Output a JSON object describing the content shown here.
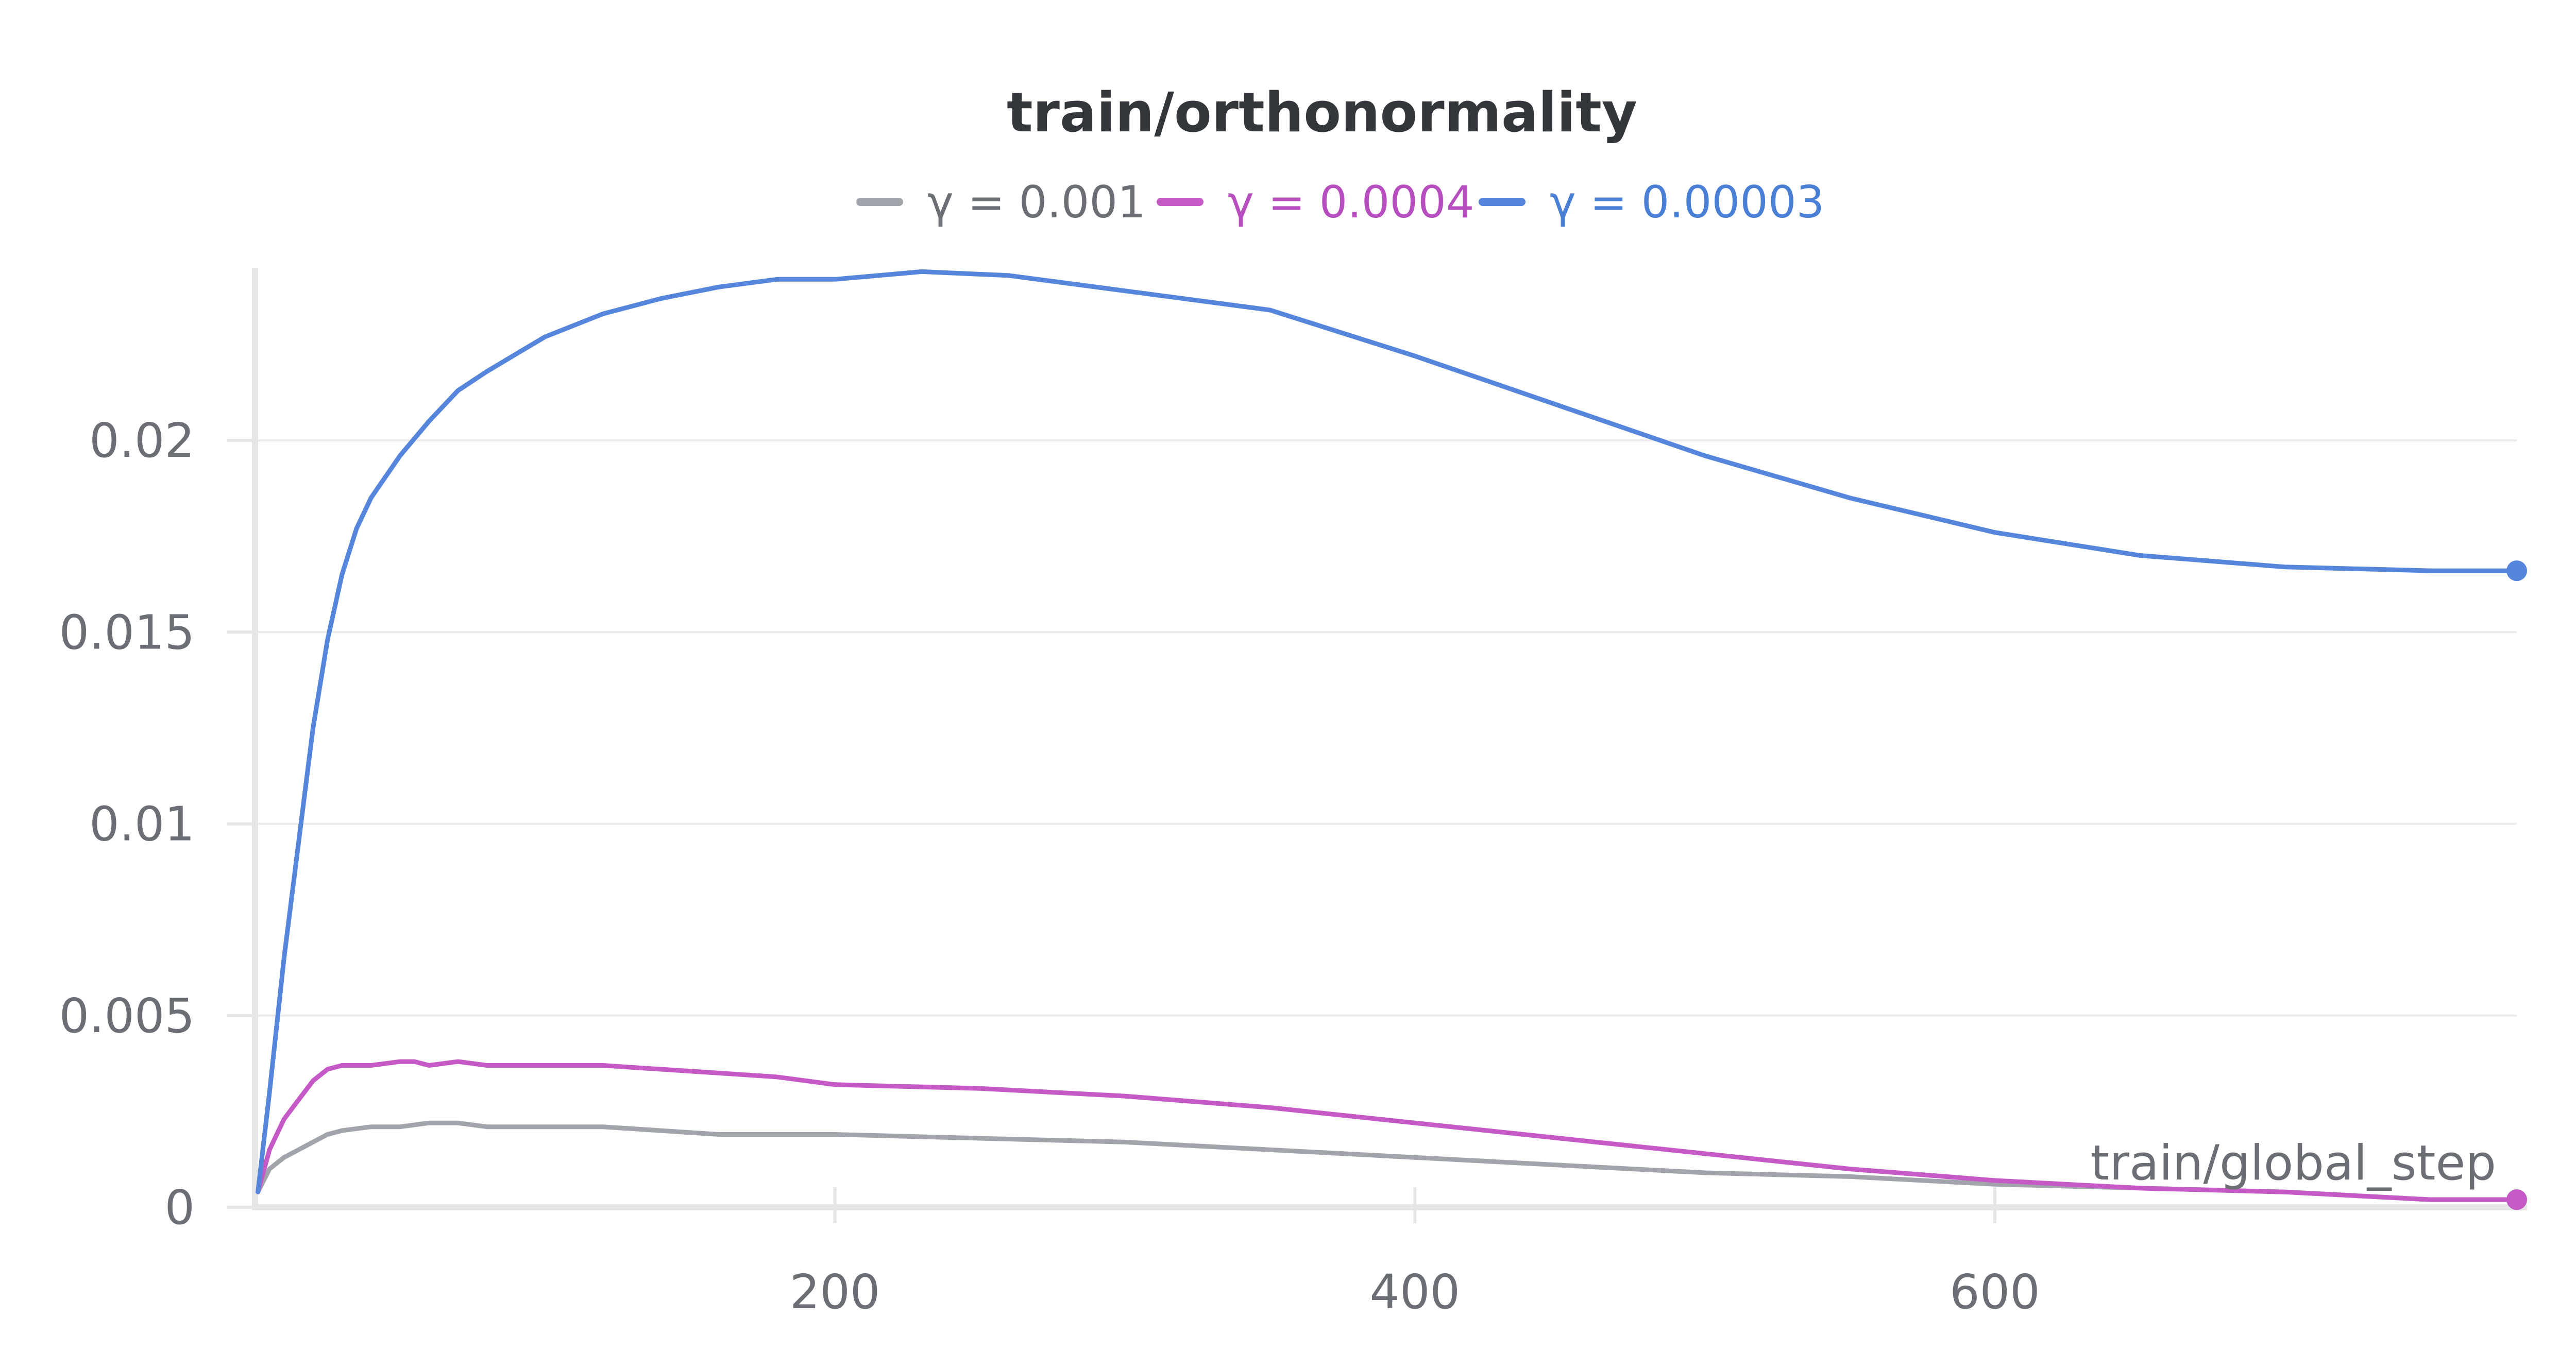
{
  "chart_data": {
    "type": "line",
    "title": "train/orthonormality",
    "xlabel": "train/global_step",
    "ylabel": "",
    "xlim": [
      0,
      780
    ],
    "ylim": [
      0,
      0.0245
    ],
    "x_ticks": [
      200,
      400,
      600
    ],
    "x_tick_labels": [
      "200",
      "400",
      "600"
    ],
    "y_ticks": [
      0,
      0.005,
      0.01,
      0.015,
      0.02
    ],
    "y_tick_labels": [
      "0",
      "0.005",
      "0.01",
      "0.015",
      "0.02"
    ],
    "grid": true,
    "legend_position": "top-center",
    "series": [
      {
        "name": "γ = 0.001",
        "color": "#a1a5ab",
        "x": [
          1,
          5,
          10,
          15,
          20,
          25,
          30,
          40,
          50,
          60,
          70,
          80,
          100,
          120,
          140,
          160,
          180,
          200,
          250,
          300,
          350,
          400,
          450,
          500,
          550,
          600,
          650,
          700,
          750,
          780
        ],
        "y": [
          0.0004,
          0.001,
          0.0013,
          0.0015,
          0.0017,
          0.0019,
          0.002,
          0.0021,
          0.0021,
          0.0022,
          0.0022,
          0.0021,
          0.0021,
          0.0021,
          0.002,
          0.0019,
          0.0019,
          0.0019,
          0.0018,
          0.0017,
          0.0015,
          0.0013,
          0.0011,
          0.0009,
          0.0008,
          0.0006,
          0.0005,
          0.0004,
          0.0002,
          0.0002
        ]
      },
      {
        "name": "γ = 0.0004",
        "color": "#c55ac6",
        "x": [
          1,
          5,
          10,
          15,
          20,
          25,
          30,
          35,
          40,
          50,
          55,
          60,
          70,
          80,
          100,
          120,
          140,
          160,
          180,
          200,
          250,
          300,
          350,
          400,
          450,
          500,
          550,
          600,
          650,
          700,
          750,
          780
        ],
        "y": [
          0.0004,
          0.0015,
          0.0023,
          0.0028,
          0.0033,
          0.0036,
          0.0037,
          0.0037,
          0.0037,
          0.0038,
          0.0038,
          0.0037,
          0.0038,
          0.0037,
          0.0037,
          0.0037,
          0.0036,
          0.0035,
          0.0034,
          0.0032,
          0.0031,
          0.0029,
          0.0026,
          0.0022,
          0.0018,
          0.0014,
          0.001,
          0.0007,
          0.0005,
          0.0004,
          0.0002,
          0.0002
        ]
      },
      {
        "name": "γ = 0.00003",
        "color": "#5686db",
        "x": [
          1,
          5,
          10,
          15,
          20,
          25,
          30,
          35,
          40,
          50,
          60,
          70,
          80,
          100,
          120,
          140,
          160,
          180,
          200,
          230,
          260,
          300,
          350,
          400,
          450,
          500,
          550,
          600,
          650,
          700,
          750,
          780
        ],
        "y": [
          0.0004,
          0.003,
          0.0065,
          0.0095,
          0.0125,
          0.0148,
          0.0165,
          0.0177,
          0.0185,
          0.0196,
          0.0205,
          0.0213,
          0.0218,
          0.0227,
          0.0233,
          0.0237,
          0.024,
          0.0242,
          0.0242,
          0.0244,
          0.0243,
          0.0239,
          0.0234,
          0.0222,
          0.0209,
          0.0196,
          0.0185,
          0.0176,
          0.017,
          0.0167,
          0.0166,
          0.0166
        ]
      }
    ]
  }
}
